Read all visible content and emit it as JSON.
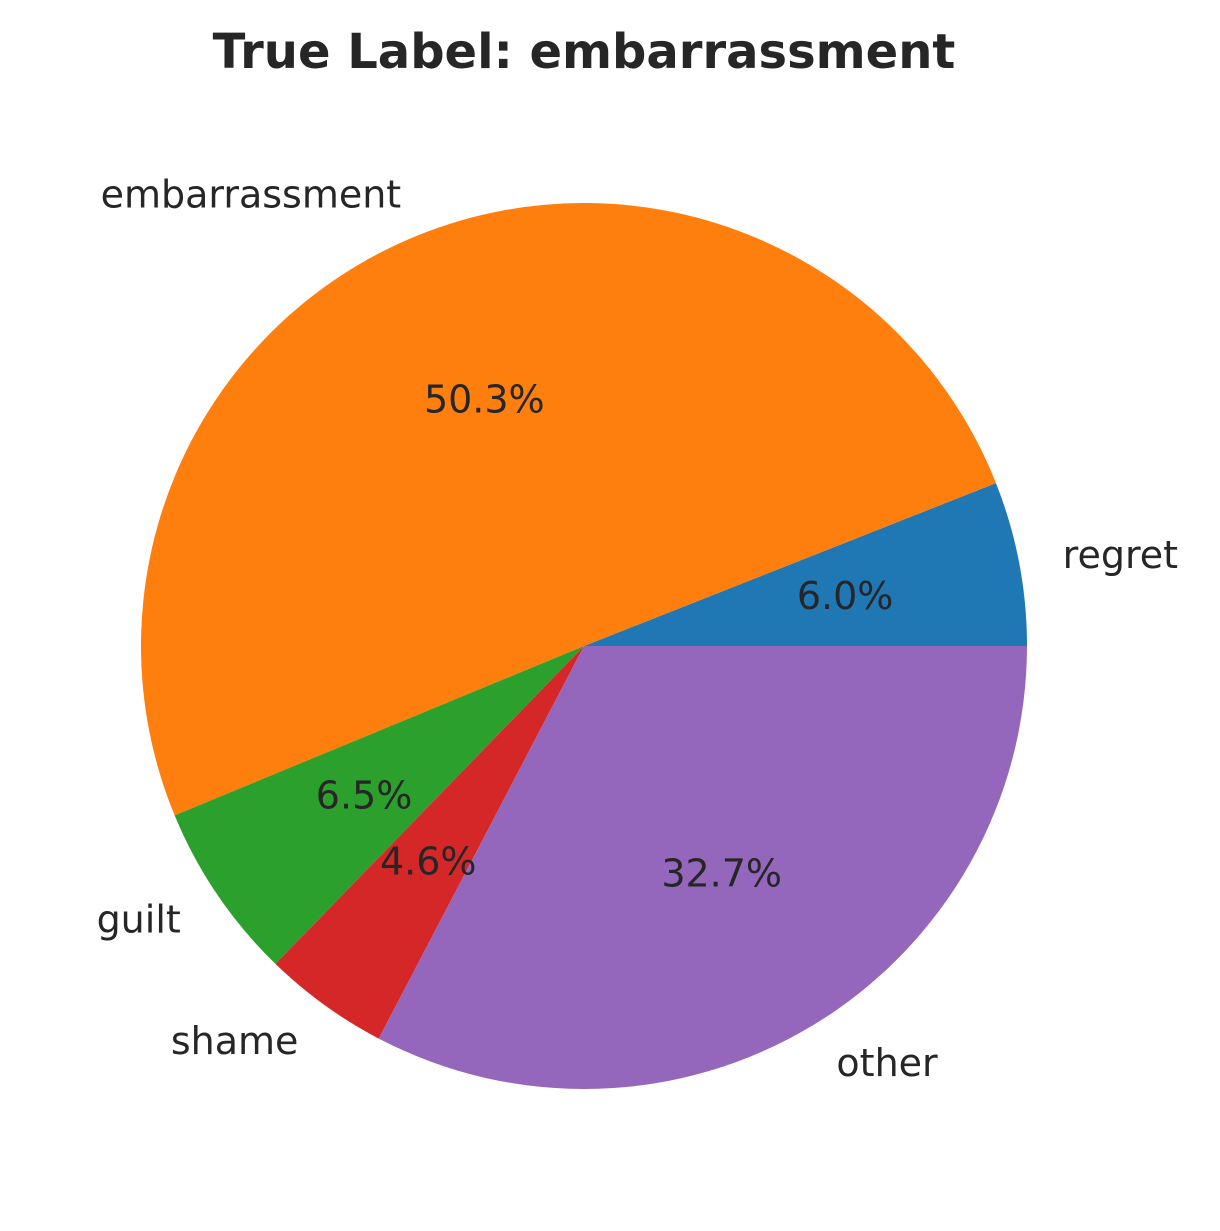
{
  "chart_data": {
    "type": "pie",
    "title": "True Label: embarrassment",
    "start_angle_deg": 0,
    "direction": "counterclockwise",
    "slices": [
      {
        "label": "regret",
        "value": 6.0,
        "pct_label": "6.0%",
        "color": "#1f77b4"
      },
      {
        "label": "embarrassment",
        "value": 50.3,
        "pct_label": "50.3%",
        "color": "#ff7f0e"
      },
      {
        "label": "guilt",
        "value": 6.5,
        "pct_label": "6.5%",
        "color": "#2ca02c"
      },
      {
        "label": "shame",
        "value": 4.6,
        "pct_label": "4.6%",
        "color": "#d62728"
      },
      {
        "label": "other",
        "value": 32.7,
        "pct_label": "32.7%",
        "color": "#9467bd"
      }
    ]
  }
}
